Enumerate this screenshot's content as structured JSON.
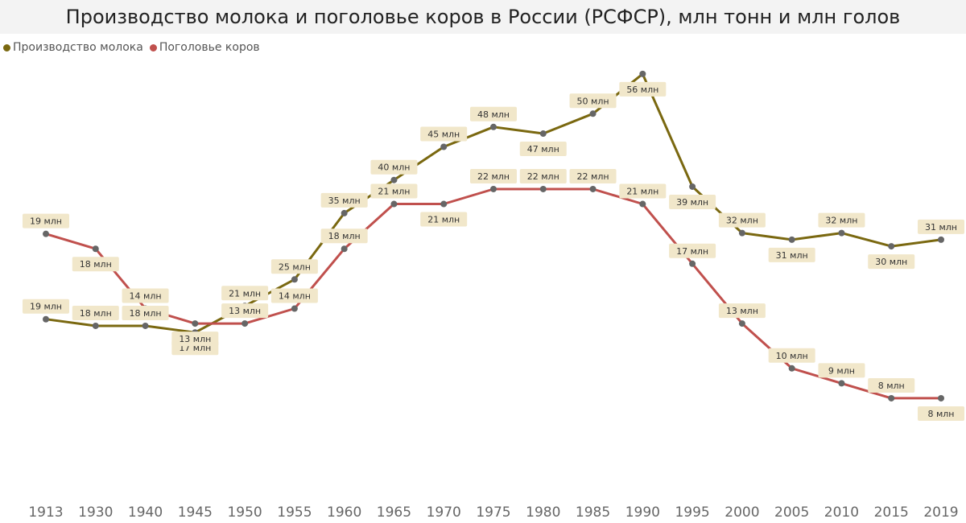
{
  "title": "Производство молока и поголовье коров в России (РСФСР), млн тонн и млн голов",
  "chart_data": {
    "type": "line",
    "title": "Производство молока и поголовье коров в России (РСФСР), млн тонн и млн голов",
    "xlabel": "",
    "ylabel": "",
    "categories": [
      "1913",
      "1930",
      "1940",
      "1945",
      "1950",
      "1955",
      "1960",
      "1965",
      "1970",
      "1975",
      "1980",
      "1985",
      "1990",
      "1995",
      "2000",
      "2005",
      "2010",
      "2015",
      "2019"
    ],
    "grid": false,
    "legend_position": "top-left",
    "series": [
      {
        "name": "Производство молока",
        "color": "#7a6810",
        "values": [
          19,
          18,
          18,
          17,
          21,
          25,
          35,
          40,
          45,
          48,
          47,
          50,
          56,
          39,
          32,
          31,
          32,
          30,
          31
        ],
        "labels": [
          "19 млн",
          "18 млн",
          "18 млн",
          "17 млн",
          "21 млн",
          "25 млн",
          "35 млн",
          "40 млн",
          "45 млн",
          "48 млн",
          "47 млн",
          "50 млн",
          "56 млн",
          "39 млн",
          "32 млн",
          "31 млн",
          "32 млн",
          "30 млн",
          "31 млн"
        ],
        "label_position": [
          "above",
          "above",
          "above",
          "below",
          "above",
          "above",
          "above",
          "above",
          "above",
          "above",
          "below",
          "above",
          "below",
          "below",
          "above",
          "below",
          "above",
          "below",
          "above"
        ]
      },
      {
        "name": "Поголовье коров",
        "color": "#c0504d",
        "values": [
          19,
          18,
          14,
          13,
          13,
          14,
          18,
          21,
          21,
          22,
          22,
          22,
          21,
          17,
          13,
          10,
          9,
          8,
          8
        ],
        "labels": [
          "19 млн",
          "18 млн",
          "14 млн",
          "13 млн",
          "13 млн",
          "14 млн",
          "18 млн",
          "21 млн",
          "21 млн",
          "22 млн",
          "22 млн",
          "22 млн",
          "21 млн",
          "17 млн",
          "13 млн",
          "10 млн",
          "9 млн",
          "8 млн",
          "8 млн"
        ],
        "label_position": [
          "above",
          "below",
          "above",
          "below",
          "above",
          "above",
          "above",
          "above",
          "below",
          "above",
          "above",
          "above",
          "above",
          "above",
          "above",
          "above",
          "above",
          "above",
          "below"
        ]
      }
    ]
  }
}
